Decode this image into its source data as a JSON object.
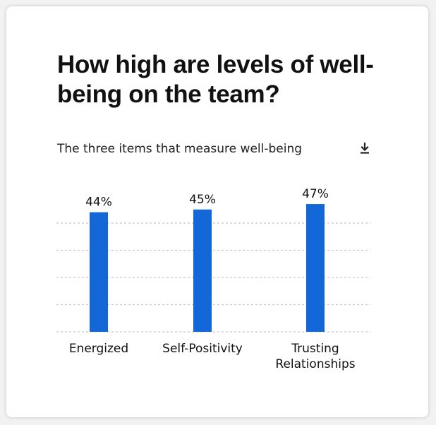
{
  "card": {
    "title": "How high are levels of well-being on the team?",
    "subtitle": "The three items that measure well-being",
    "download_icon": "download-icon"
  },
  "chart_data": {
    "type": "bar",
    "categories": [
      [
        "Energized"
      ],
      [
        "Self-Positivity"
      ],
      [
        "Trusting",
        "Relationships"
      ]
    ],
    "series": [
      {
        "values": [
          44,
          45,
          47
        ],
        "labels": [
          "44%",
          "45%",
          "47%"
        ]
      }
    ],
    "ylim": [
      0,
      50
    ],
    "grid": true,
    "bar_color": "#1467d6",
    "grid_color": "#c8c8c8"
  }
}
